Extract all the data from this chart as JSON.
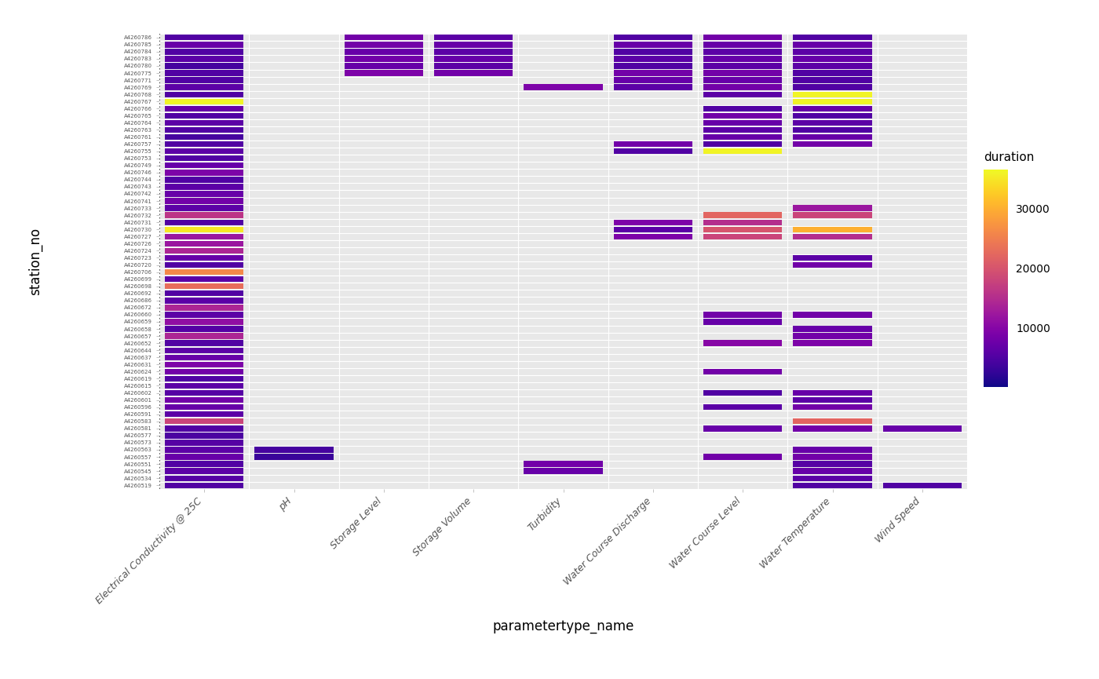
{
  "parameters": [
    "Electrical Conductivity @ 25C",
    "pH",
    "Storage Level",
    "Storage Volume",
    "Turbidity",
    "Water Course Discharge",
    "Water Course Level",
    "Water Temperature",
    "Wind Speed"
  ],
  "colormap": "plasma",
  "vmin": 0,
  "vmax": 36500,
  "colorbar_ticks": [
    10000,
    20000,
    30000
  ],
  "colorbar_label": "duration",
  "xlabel": "parametertype_name",
  "ylabel": "station_no",
  "bg_color": "#e8e8e8",
  "stations": [
    "A4260519",
    "A4260534",
    "A4260545",
    "A4260551",
    "A4260557",
    "A4260563",
    "A4260573",
    "A4260577",
    "A4260581",
    "A4260583",
    "A4260591",
    "A4260596",
    "A4260601",
    "A4260602",
    "A4260615",
    "A4260619",
    "A4260624",
    "A4260631",
    "A4260637",
    "A4260644",
    "A4260652",
    "A4260657",
    "A4260658",
    "A4260659",
    "A4260660",
    "A4260672",
    "A4260686",
    "A4260692",
    "A4260698",
    "A4260699",
    "A4260706",
    "A4260720",
    "A4260723",
    "A4260724",
    "A4260726",
    "A4260727",
    "A4260730",
    "A4260731",
    "A4260732",
    "A4260733",
    "A4260741",
    "A4260742",
    "A4260743",
    "A4260744",
    "A4260746",
    "A4260749",
    "A4260753",
    "A4260755",
    "A4260757",
    "A4260761",
    "A4260763",
    "A4260764",
    "A4260765",
    "A4260766",
    "A4260767",
    "A4260768",
    "A4260769",
    "A4260771",
    "A4260775",
    "A4260780",
    "A4260783",
    "A4260784",
    "A4260785",
    "A4260786"
  ],
  "data": [
    [
      5000,
      null,
      null,
      null,
      null,
      null,
      null,
      5000,
      5000
    ],
    [
      5500,
      null,
      null,
      null,
      null,
      null,
      null,
      6000,
      null
    ],
    [
      6000,
      null,
      null,
      null,
      7000,
      null,
      null,
      7000,
      null
    ],
    [
      5000,
      null,
      null,
      null,
      8000,
      null,
      null,
      5500,
      null
    ],
    [
      7000,
      3000,
      null,
      null,
      null,
      null,
      8000,
      8000,
      null
    ],
    [
      6000,
      4000,
      null,
      null,
      null,
      null,
      null,
      7000,
      null
    ],
    [
      5500,
      null,
      null,
      null,
      null,
      null,
      null,
      null,
      null
    ],
    [
      4500,
      null,
      null,
      null,
      null,
      null,
      null,
      null,
      null
    ],
    [
      5000,
      null,
      null,
      null,
      null,
      null,
      7000,
      8000,
      7000
    ],
    [
      18000,
      null,
      null,
      null,
      null,
      null,
      null,
      22000,
      null
    ],
    [
      6000,
      null,
      null,
      null,
      null,
      null,
      null,
      null,
      null
    ],
    [
      7000,
      null,
      null,
      null,
      null,
      null,
      6000,
      8000,
      null
    ],
    [
      8000,
      null,
      null,
      null,
      null,
      null,
      null,
      6000,
      null
    ],
    [
      5500,
      null,
      null,
      null,
      null,
      null,
      5000,
      7000,
      null
    ],
    [
      6000,
      null,
      null,
      null,
      null,
      null,
      null,
      null,
      null
    ],
    [
      5000,
      null,
      null,
      null,
      null,
      null,
      null,
      null,
      null
    ],
    [
      8000,
      null,
      null,
      null,
      null,
      null,
      8000,
      null,
      null
    ],
    [
      9000,
      null,
      null,
      null,
      null,
      null,
      null,
      null,
      null
    ],
    [
      7000,
      null,
      null,
      null,
      null,
      null,
      null,
      null,
      null
    ],
    [
      6000,
      null,
      null,
      null,
      null,
      null,
      null,
      null,
      null
    ],
    [
      5000,
      null,
      null,
      null,
      null,
      null,
      10000,
      9000,
      null
    ],
    [
      14000,
      null,
      null,
      null,
      null,
      null,
      null,
      8000,
      null
    ],
    [
      5500,
      null,
      null,
      null,
      null,
      null,
      null,
      7000,
      null
    ],
    [
      11000,
      null,
      null,
      null,
      null,
      null,
      7000,
      null,
      null
    ],
    [
      6000,
      null,
      null,
      null,
      null,
      null,
      8000,
      8000,
      null
    ],
    [
      14000,
      null,
      null,
      null,
      null,
      null,
      null,
      null,
      null
    ],
    [
      6000,
      null,
      null,
      null,
      null,
      null,
      null,
      null,
      null
    ],
    [
      5000,
      null,
      null,
      null,
      null,
      null,
      null,
      null,
      null
    ],
    [
      23000,
      null,
      null,
      null,
      null,
      null,
      null,
      null,
      null
    ],
    [
      6000,
      null,
      null,
      null,
      null,
      null,
      null,
      null,
      null
    ],
    [
      26000,
      null,
      null,
      null,
      null,
      null,
      null,
      null,
      null
    ],
    [
      5000,
      null,
      null,
      null,
      null,
      null,
      null,
      8000,
      null
    ],
    [
      7000,
      null,
      null,
      null,
      null,
      null,
      null,
      6000,
      null
    ],
    [
      14000,
      null,
      null,
      null,
      null,
      null,
      null,
      null,
      null
    ],
    [
      12000,
      null,
      null,
      null,
      null,
      null,
      null,
      null,
      null
    ],
    [
      12000,
      null,
      null,
      null,
      null,
      9000,
      18000,
      15000,
      null
    ],
    [
      35000,
      null,
      null,
      null,
      null,
      6000,
      20000,
      30000,
      null
    ],
    [
      5000,
      null,
      null,
      null,
      null,
      9000,
      15000,
      null,
      null
    ],
    [
      16000,
      null,
      null,
      null,
      null,
      null,
      22000,
      18000,
      null
    ],
    [
      6000,
      null,
      null,
      null,
      null,
      null,
      null,
      12000,
      null
    ],
    [
      8000,
      null,
      null,
      null,
      null,
      null,
      null,
      null,
      null
    ],
    [
      7000,
      null,
      null,
      null,
      null,
      null,
      null,
      null,
      null
    ],
    [
      6000,
      null,
      null,
      null,
      null,
      null,
      null,
      null,
      null
    ],
    [
      5000,
      null,
      null,
      null,
      null,
      null,
      null,
      null,
      null
    ],
    [
      9000,
      null,
      null,
      null,
      null,
      null,
      null,
      null,
      null
    ],
    [
      7000,
      null,
      null,
      null,
      null,
      null,
      null,
      null,
      null
    ],
    [
      5000,
      null,
      null,
      null,
      null,
      null,
      null,
      null,
      null
    ],
    [
      6000,
      null,
      null,
      null,
      null,
      5000,
      36000,
      null,
      null
    ],
    [
      5000,
      null,
      null,
      null,
      null,
      8000,
      5000,
      8000,
      null
    ],
    [
      4000,
      null,
      null,
      null,
      null,
      null,
      7000,
      7000,
      null
    ],
    [
      5000,
      null,
      null,
      null,
      null,
      null,
      6000,
      5000,
      null
    ],
    [
      6000,
      null,
      null,
      null,
      null,
      null,
      7000,
      6000,
      null
    ],
    [
      5000,
      null,
      null,
      null,
      null,
      null,
      8000,
      5000,
      null
    ],
    [
      7000,
      null,
      null,
      null,
      null,
      null,
      5000,
      7000,
      null
    ],
    [
      36000,
      null,
      null,
      null,
      null,
      null,
      null,
      36000,
      null
    ],
    [
      5000,
      null,
      null,
      null,
      null,
      null,
      6000,
      36000,
      null
    ],
    [
      6000,
      null,
      null,
      null,
      9000,
      6000,
      8000,
      5000,
      null
    ],
    [
      5000,
      null,
      null,
      null,
      null,
      7000,
      7000,
      5000,
      null
    ],
    [
      5000,
      null,
      9000,
      8000,
      null,
      8000,
      8000,
      5000,
      null
    ],
    [
      4000,
      null,
      7000,
      6000,
      null,
      5000,
      6000,
      6000,
      null
    ],
    [
      6000,
      null,
      8000,
      7000,
      null,
      6000,
      7000,
      7000,
      null
    ],
    [
      5000,
      null,
      7000,
      6000,
      null,
      5000,
      6000,
      6000,
      null
    ],
    [
      7000,
      null,
      8000,
      7000,
      null,
      7000,
      7000,
      7000,
      null
    ],
    [
      5000,
      null,
      8000,
      6000,
      null,
      5000,
      8000,
      5000,
      null
    ]
  ]
}
